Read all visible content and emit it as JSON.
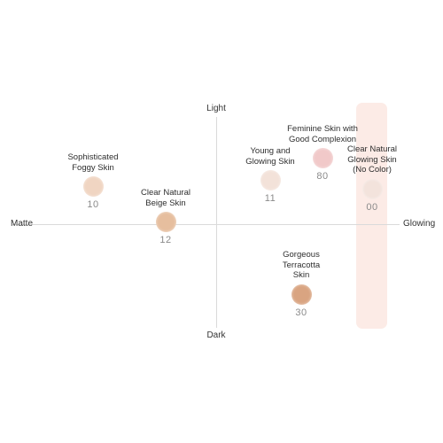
{
  "axes": {
    "top": "Light",
    "bottom": "Dark",
    "left": "Matte",
    "right": "Glowing"
  },
  "colors": {
    "axis_line": "#dadada",
    "highlight": "#fcebe6",
    "label_text": "#333333",
    "code_text": "#8a8a8a"
  },
  "shades": [
    {
      "name": "Sophisticated\nFoggy Skin",
      "code": "10",
      "swatch_color": "#f0d5c2",
      "x": "matte",
      "y": "light"
    },
    {
      "name": "Clear Natural\nBeige Skin",
      "code": "12",
      "swatch_color": "#e6be9e",
      "x": "matte",
      "y": "light"
    },
    {
      "name": "Young and\nGlowing Skin",
      "code": "11",
      "swatch_color": "#f3e2d9",
      "x": "glowing",
      "y": "light"
    },
    {
      "name": "Feminine Skin with\nGood Complexion",
      "code": "80",
      "swatch_color": "#f1c9c9",
      "x": "glowing",
      "y": "light"
    },
    {
      "name": "Clear Natural\nGlowing Skin\n(No Color)",
      "code": "00",
      "swatch_color": "#f3e3dc",
      "x": "glowing",
      "y": "light"
    },
    {
      "name": "Gorgeous\nTerracotta\nSkin",
      "code": "30",
      "swatch_color": "#d9a481",
      "x": "glowing",
      "y": "dark"
    }
  ]
}
